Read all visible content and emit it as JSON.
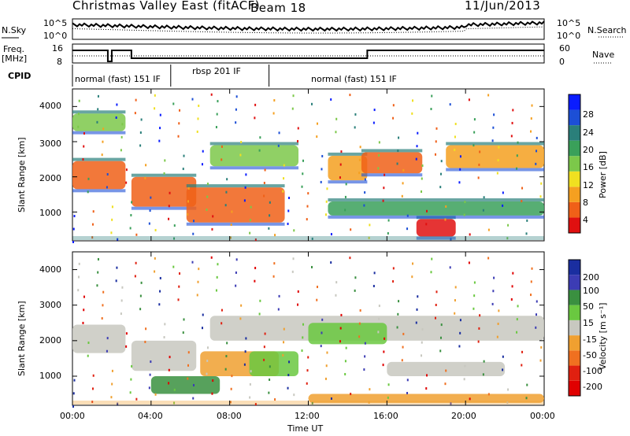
{
  "header": {
    "site": "Christmas Valley East (fitACF)",
    "beam": "Beam 18",
    "date": "11/Jun/2013"
  },
  "panels": {
    "nsky_label": "N.Sky",
    "nsearch_label": "N.Search",
    "freq_label": "Freq.",
    "mhz_label": "[MHz]",
    "nave_label": "Nave",
    "cpid_label": "CPID",
    "noise_ticks": [
      "10^5",
      "10^0"
    ],
    "noise_right_ticks": [
      "10^5",
      "10^0"
    ],
    "freq_ticks": [
      "16",
      "8"
    ],
    "nave_ticks": [
      "60",
      "0"
    ]
  },
  "cpid_segments": [
    {
      "start_hour": 0.0,
      "end_hour": 5.0,
      "label": "normal (fast) 151 IF"
    },
    {
      "start_hour": 5.0,
      "end_hour": 10.0,
      "label": "rbsp 201 IF"
    },
    {
      "start_hour": 10.0,
      "end_hour": 24.0,
      "label": "normal (fast) 151 IF"
    }
  ],
  "chart_data": [
    {
      "type": "heatmap",
      "name": "power",
      "ylabel": "Slant Range [km]",
      "yticks": [
        "4000",
        "3000",
        "2000",
        "1000"
      ],
      "ylim": [
        180,
        4500
      ],
      "xlim_hours": [
        0,
        24
      ],
      "colorbar_label": "Power [dB]",
      "colorbar_ticks": [
        "28",
        "24",
        "20",
        "16",
        "12",
        "8",
        "4"
      ],
      "colorbar_colors": [
        "#0a1cff",
        "#1c4fd6",
        "#2a7f7a",
        "#3aa05a",
        "#7cc84a",
        "#f0e020",
        "#f5a020",
        "#f06018",
        "#e01010"
      ],
      "bands": [
        {
          "t0": 0.0,
          "t1": 2.7,
          "r0": 1650,
          "r1": 2450,
          "level": 0.85
        },
        {
          "t0": 0.0,
          "t1": 2.7,
          "r0": 3300,
          "r1": 3800,
          "level": 0.45
        },
        {
          "t0": 3.0,
          "t1": 6.3,
          "r0": 1150,
          "r1": 2000,
          "level": 0.8
        },
        {
          "t0": 5.8,
          "t1": 10.8,
          "r0": 700,
          "r1": 1700,
          "level": 0.8
        },
        {
          "t0": 7.0,
          "t1": 11.5,
          "r0": 2300,
          "r1": 2900,
          "level": 0.55
        },
        {
          "t0": 13.0,
          "t1": 15.0,
          "r0": 1900,
          "r1": 2600,
          "level": 0.75
        },
        {
          "t0": 14.7,
          "t1": 17.8,
          "r0": 2100,
          "r1": 2700,
          "level": 0.8
        },
        {
          "t0": 19.0,
          "t1": 24.0,
          "r0": 2250,
          "r1": 2900,
          "level": 0.7
        },
        {
          "t0": 17.5,
          "t1": 19.5,
          "r0": 300,
          "r1": 800,
          "level": 0.9
        },
        {
          "t0": 13.0,
          "t1": 24.0,
          "r0": 900,
          "r1": 1300,
          "level": 0.4
        }
      ]
    },
    {
      "type": "heatmap",
      "name": "velocity",
      "ylabel": "Slant Range [km]",
      "yticks": [
        "4000",
        "3000",
        "2000",
        "1000"
      ],
      "ylim": [
        180,
        4500
      ],
      "xlim_hours": [
        0,
        24
      ],
      "xlabel": "Time UT",
      "xticks": [
        "00:00",
        "04:00",
        "08:00",
        "12:00",
        "16:00",
        "20:00",
        "00:00"
      ],
      "colorbar_label": "Velocity [m s⁻¹]",
      "colorbar_ticks": [
        "200",
        "100",
        "50",
        "15",
        "-15",
        "-50",
        "-100",
        "-200"
      ],
      "colorbar_colors": [
        "#1a2ea0",
        "#3c3cb4",
        "#3a9040",
        "#6ac840",
        "#c8c8c0",
        "#f0a030",
        "#f07020",
        "#e02010",
        "#e00000"
      ],
      "bands": [
        {
          "t0": 0.0,
          "t1": 2.7,
          "r0": 1650,
          "r1": 2450,
          "color": "#c8c8c0"
        },
        {
          "t0": 3.0,
          "t1": 6.3,
          "r0": 1150,
          "r1": 2000,
          "color": "#c8c8c0"
        },
        {
          "t0": 4.0,
          "t1": 7.5,
          "r0": 500,
          "r1": 1000,
          "color": "#3a9040"
        },
        {
          "t0": 6.5,
          "t1": 10.5,
          "r0": 1000,
          "r1": 1700,
          "color": "#f0a030"
        },
        {
          "t0": 9.0,
          "t1": 11.5,
          "r0": 1000,
          "r1": 1700,
          "color": "#6ac840"
        },
        {
          "t0": 7.0,
          "t1": 24.0,
          "r0": 2000,
          "r1": 2700,
          "color": "#c8c8c0"
        },
        {
          "t0": 12.0,
          "t1": 16.0,
          "r0": 1900,
          "r1": 2500,
          "color": "#6ac840"
        },
        {
          "t0": 16.0,
          "t1": 22.0,
          "r0": 1000,
          "r1": 1400,
          "color": "#c8c8c0"
        },
        {
          "t0": 12.0,
          "t1": 24.0,
          "r0": 250,
          "r1": 500,
          "color": "#f0a030"
        }
      ]
    }
  ],
  "nave_high": {
    "t0": 0,
    "t1": 3.0
  },
  "nave_low": {
    "t0": 3.0,
    "t1": 15.0
  }
}
